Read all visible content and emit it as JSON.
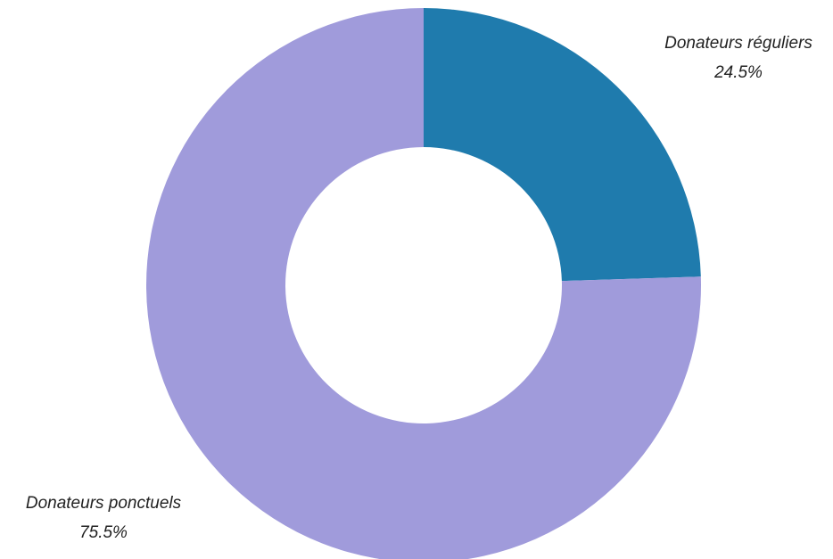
{
  "chart_data": {
    "type": "pie",
    "variant": "donut",
    "slices": [
      {
        "label": "Donateurs réguliers",
        "value": 24.5,
        "value_label": "24.5%",
        "color": "#1f7bad"
      },
      {
        "label": "Donateurs ponctuels",
        "value": 75.5,
        "value_label": "75.5%",
        "color": "#a09bdb"
      }
    ],
    "start_angle": "12 o'clock",
    "direction": "clockwise",
    "legend": "none",
    "title": ""
  }
}
